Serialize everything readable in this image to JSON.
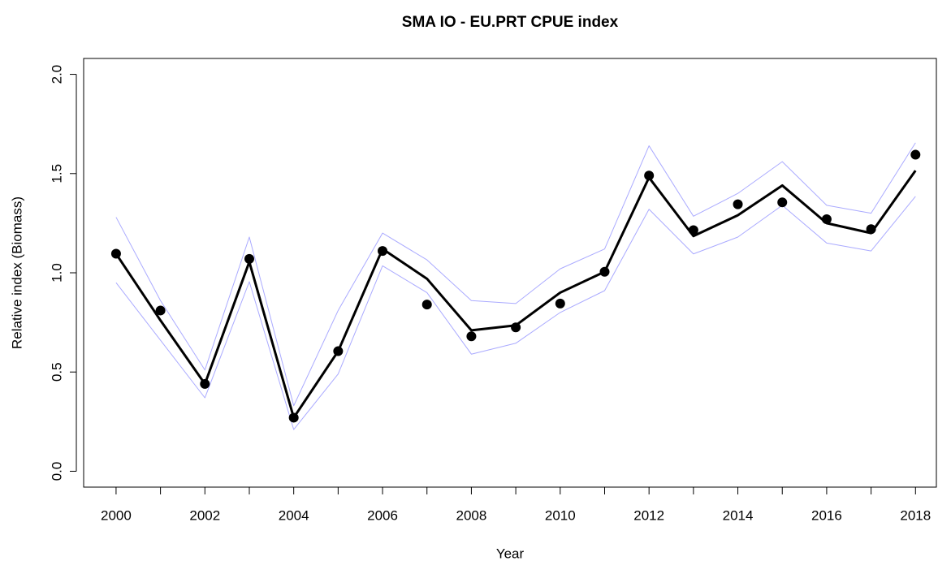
{
  "chart_data": {
    "type": "line",
    "title": "SMA IO - EU.PRT CPUE index",
    "x_label": "Year",
    "y_label": "Relative index (Biomass)",
    "x": [
      2000,
      2001,
      2002,
      2003,
      2004,
      2005,
      2006,
      2007,
      2008,
      2009,
      2010,
      2011,
      2012,
      2013,
      2014,
      2015,
      2016,
      2017,
      2018
    ],
    "series": [
      {
        "color": "#aaaaff",
        "style": "line",
        "width": 1,
        "values": [
          1.28,
          0.86,
          0.51,
          1.18,
          0.33,
          0.81,
          1.2,
          1.065,
          0.86,
          0.845,
          1.02,
          1.12,
          1.64,
          1.285,
          1.4,
          1.56,
          1.34,
          1.3,
          1.655
        ]
      },
      {
        "color": "#aaaaff",
        "style": "line",
        "width": 1,
        "values": [
          0.95,
          0.66,
          0.37,
          0.955,
          0.21,
          0.49,
          1.035,
          0.9,
          0.59,
          0.645,
          0.8,
          0.91,
          1.32,
          1.095,
          1.18,
          1.34,
          1.15,
          1.11,
          1.385
        ]
      },
      {
        "color": "#000000",
        "style": "line",
        "width": 3,
        "values": [
          1.096,
          0.76,
          0.44,
          1.055,
          0.27,
          0.605,
          1.12,
          0.97,
          0.71,
          0.735,
          0.9,
          1.005,
          1.48,
          1.185,
          1.29,
          1.44,
          1.25,
          1.2,
          1.515
        ]
      },
      {
        "color": "#000000",
        "style": "points",
        "width": 6,
        "values": [
          1.096,
          0.81,
          0.44,
          1.07,
          0.27,
          0.605,
          1.11,
          0.84,
          0.68,
          0.725,
          0.845,
          1.005,
          1.49,
          1.215,
          1.345,
          1.355,
          1.27,
          1.22,
          1.595
        ]
      }
    ],
    "xlim": [
      1999.27,
      2018.47
    ],
    "ylim": [
      -0.08,
      2.08
    ],
    "xticks": [
      2000,
      {
        "value": 2001,
        "label": null
      },
      2002,
      {
        "value": 2003,
        "label": null
      },
      2004,
      {
        "value": 2005,
        "label": null
      },
      2006,
      {
        "value": 2007,
        "label": null
      },
      2008,
      {
        "value": 2009,
        "label": null
      },
      2010,
      {
        "value": 2011,
        "label": null
      },
      2012,
      {
        "value": 2013,
        "label": null
      },
      2014,
      {
        "value": 2015,
        "label": null
      },
      2016,
      {
        "value": 2017,
        "label": null
      },
      2018
    ],
    "yticks": [
      {
        "value": 0,
        "label": "0.0"
      },
      0.5,
      {
        "value": 1,
        "label": "1.0"
      },
      1.5,
      {
        "value": 2,
        "label": "2.0"
      }
    ],
    "grid": false
  }
}
